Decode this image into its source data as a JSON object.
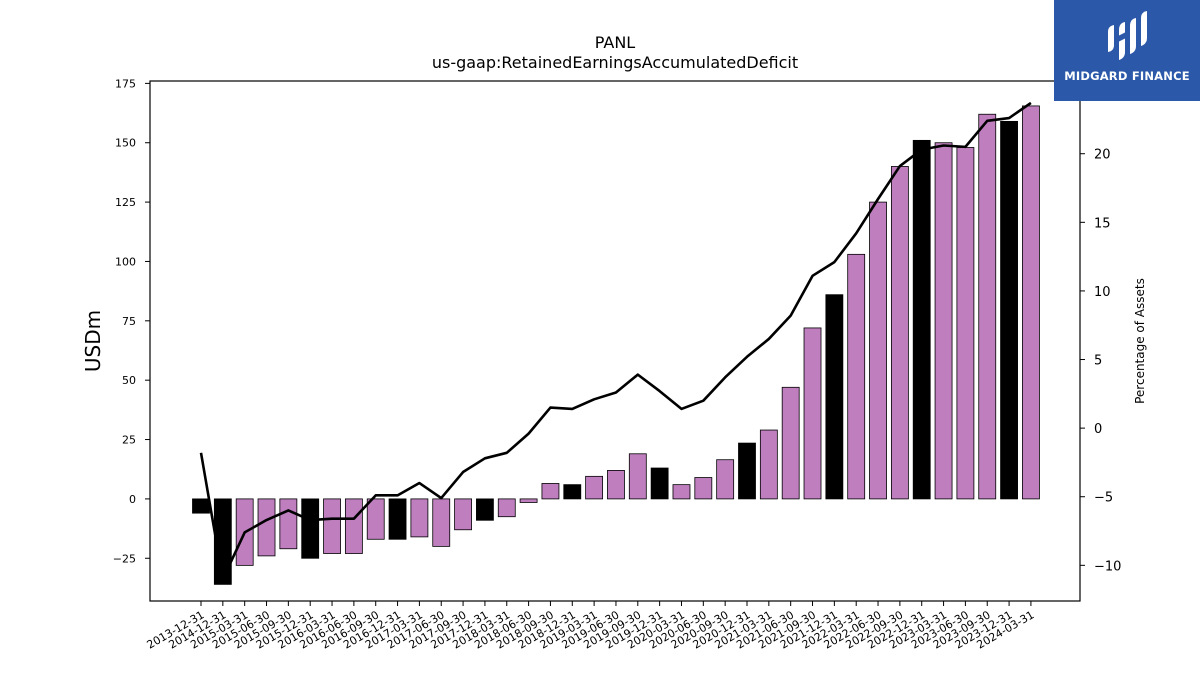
{
  "chart_data": {
    "type": "bar+line",
    "title": "PANL",
    "subtitle": "us-gaap:RetainedEarningsAccumulatedDeficit",
    "ylabel": "USDm",
    "y2label": "Percentage of Assets",
    "ylim": [
      -43,
      176
    ],
    "y2lim": [
      -12.6,
      25.3
    ],
    "yticks": [
      -25,
      0,
      25,
      50,
      75,
      100,
      125,
      150,
      175
    ],
    "y2ticks": [
      -10,
      -5,
      0,
      5,
      10,
      15,
      20
    ],
    "categories": [
      "2013-12-31",
      "2014-12-31",
      "2015-03-31",
      "2015-06-30",
      "2015-09-30",
      "2015-12-31",
      "2016-03-31",
      "2016-06-30",
      "2016-09-30",
      "2016-12-31",
      "2017-03-31",
      "2017-06-30",
      "2017-09-30",
      "2017-12-31",
      "2018-03-31",
      "2018-06-30",
      "2018-09-30",
      "2018-12-31",
      "2019-03-31",
      "2019-06-30",
      "2019-09-30",
      "2019-12-31",
      "2020-03-31",
      "2020-06-30",
      "2020-09-30",
      "2020-12-31",
      "2021-03-31",
      "2021-06-30",
      "2021-09-30",
      "2021-12-31",
      "2022-03-31",
      "2022-06-30",
      "2022-09-30",
      "2022-12-31",
      "2023-03-31",
      "2023-06-30",
      "2023-09-30",
      "2023-12-31",
      "2024-03-31"
    ],
    "series": [
      {
        "kind": "bar",
        "values": [
          -6,
          -36,
          -28,
          -24,
          -21,
          -25,
          -23,
          -23,
          -17,
          -17,
          -16,
          -20,
          -13,
          -9,
          -7.5,
          -1.5,
          6.5,
          6,
          9.5,
          12,
          19,
          13,
          6,
          9,
          16.5,
          23.5,
          29,
          47,
          72,
          86,
          103,
          125,
          140,
          151,
          150,
          148,
          162,
          159,
          165.5
        ],
        "colors": [
          "#000000",
          "#000000",
          "#bf7fbf",
          "#bf7fbf",
          "#bf7fbf",
          "#000000",
          "#bf7fbf",
          "#bf7fbf",
          "#bf7fbf",
          "#000000",
          "#bf7fbf",
          "#bf7fbf",
          "#bf7fbf",
          "#000000",
          "#bf7fbf",
          "#bf7fbf",
          "#bf7fbf",
          "#000000",
          "#bf7fbf",
          "#bf7fbf",
          "#bf7fbf",
          "#000000",
          "#bf7fbf",
          "#bf7fbf",
          "#bf7fbf",
          "#000000",
          "#bf7fbf",
          "#bf7fbf",
          "#bf7fbf",
          "#000000",
          "#bf7fbf",
          "#bf7fbf",
          "#bf7fbf",
          "#000000",
          "#bf7fbf",
          "#bf7fbf",
          "#bf7fbf",
          "#000000",
          "#bf7fbf"
        ]
      },
      {
        "kind": "line",
        "axis": "right",
        "color": "#000000",
        "values": [
          -1.8,
          -11.0,
          -7.6,
          -6.7,
          -6.0,
          -6.7,
          -6.6,
          -6.6,
          -4.9,
          -4.9,
          -4.0,
          -5.1,
          -3.2,
          -2.2,
          -1.8,
          -0.4,
          1.5,
          1.4,
          2.1,
          2.6,
          3.9,
          2.7,
          1.4,
          2.0,
          3.7,
          5.2,
          6.5,
          8.2,
          11.1,
          12.1,
          14.2,
          16.7,
          19.1,
          20.3,
          20.6,
          20.5,
          22.4,
          22.6,
          23.7
        ]
      }
    ]
  },
  "logo": {
    "text": "MIDGARD FINANCE",
    "bg_color": "#2b58a8"
  }
}
